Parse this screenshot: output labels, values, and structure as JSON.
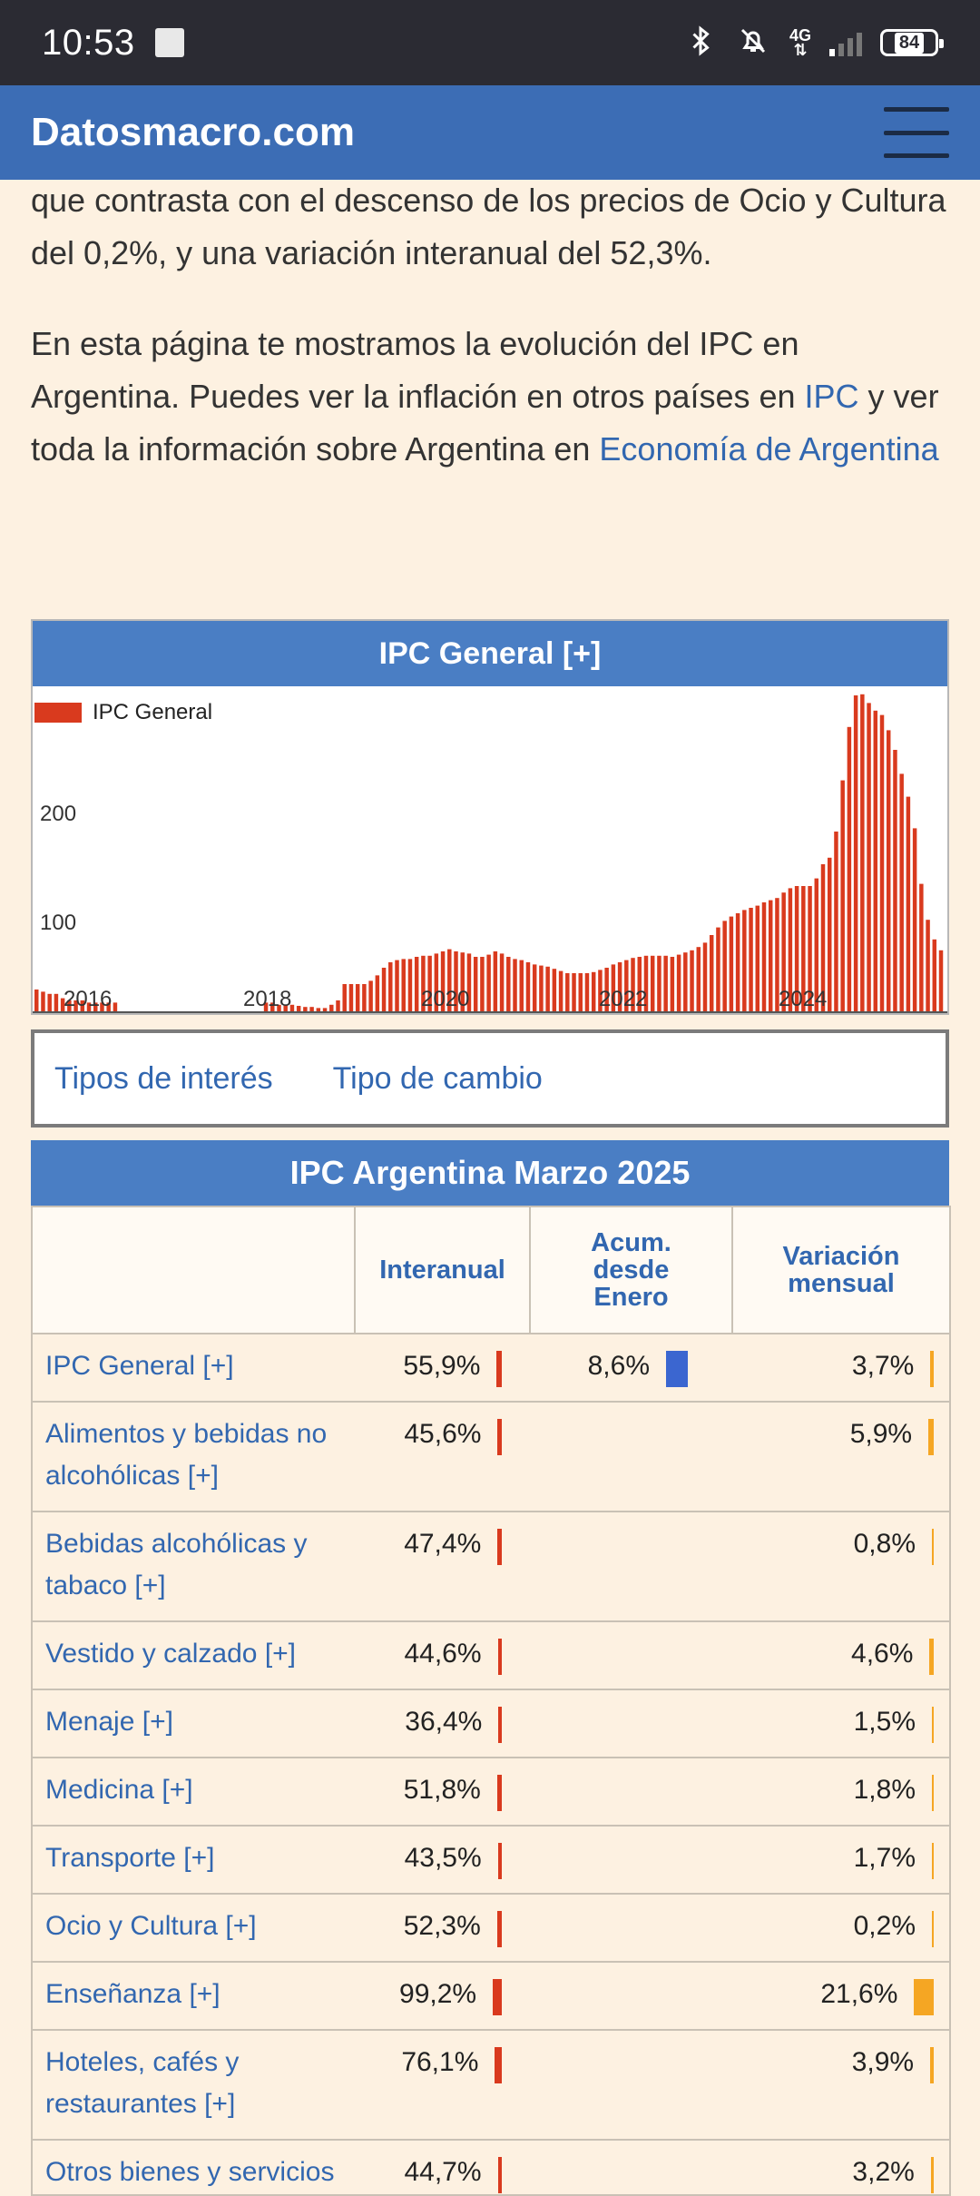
{
  "status_bar": {
    "time": "10:53",
    "network": "4G",
    "battery": "84",
    "icons": [
      "bluetooth-icon",
      "mute-icon",
      "signal-icon",
      "battery-icon"
    ]
  },
  "header": {
    "brand": "Datosmacro.com",
    "menu_icon": "hamburger-menu-icon"
  },
  "intro": {
    "paragraph1": "que contrasta con el descenso de los precios de Ocio y Cultura del 0,2%, y una variación interanual del 52,3%.",
    "paragraph2_start": "En esta página te mostramos la evolución del IPC en Argentina. Puedes ver la inflación en otros países en ",
    "link_ipc": "IPC",
    "paragraph2_mid": " y ver toda la información sobre Argentina en ",
    "link_economia": "Economía de Argentina"
  },
  "chart": {
    "title": "IPC General [+]",
    "legend": "IPC General",
    "color": "#d93a1e",
    "y_ticks": [
      "200",
      "100"
    ],
    "x_ticks": [
      "2016",
      "2018",
      "2020",
      "2022",
      "2024"
    ]
  },
  "chart_data": {
    "type": "bar",
    "series": [
      {
        "name": "IPC General"
      }
    ],
    "yticks": [
      100,
      200
    ],
    "xticks": [
      "2016",
      "2018",
      "2020",
      "2022",
      "2024"
    ],
    "values": [
      20,
      18,
      16,
      16,
      12,
      10,
      10,
      10,
      8,
      8,
      8,
      8,
      8,
      null,
      null,
      null,
      null,
      null,
      null,
      null,
      null,
      null,
      null,
      null,
      null,
      null,
      null,
      null,
      null,
      null,
      null,
      null,
      null,
      null,
      null,
      8,
      8,
      6,
      6,
      6,
      5,
      4,
      4,
      3,
      3,
      6,
      10,
      25,
      25,
      25,
      25,
      28,
      33,
      40,
      45,
      47,
      48,
      48,
      50,
      51,
      51,
      53,
      55,
      57,
      55,
      54,
      53,
      50,
      50,
      52,
      55,
      53,
      50,
      48,
      47,
      45,
      43,
      42,
      41,
      39,
      37,
      35,
      35,
      35,
      35,
      36,
      38,
      40,
      43,
      45,
      47,
      49,
      50,
      51,
      51,
      51,
      51,
      50,
      52,
      54,
      56,
      59,
      63,
      70,
      77,
      83,
      87,
      90,
      93,
      95,
      97,
      100,
      102,
      104,
      109,
      113,
      115,
      115,
      115,
      122,
      135,
      141,
      165,
      212,
      261,
      290,
      291,
      283,
      276,
      272,
      258,
      240,
      218,
      197,
      168,
      117,
      84,
      66,
      56
    ],
    "ylabel": "",
    "xlabel": ""
  },
  "links_box": {
    "tipos_interes": "Tipos de interés",
    "tipo_cambio": "Tipo de cambio"
  },
  "table": {
    "title": "IPC Argentina Marzo 2025",
    "headers": [
      "Interanual",
      "Acum. desde Enero",
      "Variación mensual"
    ],
    "rows": [
      {
        "name": "IPC General [+]",
        "interanual": "55,9%",
        "acum": "8,6%",
        "mensual": "3,7%"
      },
      {
        "name": "Alimentos y bebidas no alcohólicas [+]",
        "interanual": "45,6%",
        "acum": "",
        "mensual": "5,9%"
      },
      {
        "name": "Bebidas alcohólicas y tabaco [+]",
        "interanual": "47,4%",
        "acum": "",
        "mensual": "0,8%"
      },
      {
        "name": "Vestido y calzado [+]",
        "interanual": "44,6%",
        "acum": "",
        "mensual": "4,6%"
      },
      {
        "name": "Menaje [+]",
        "interanual": "36,4%",
        "acum": "",
        "mensual": "1,5%"
      },
      {
        "name": "Medicina [+]",
        "interanual": "51,8%",
        "acum": "",
        "mensual": "1,8%"
      },
      {
        "name": "Transporte [+]",
        "interanual": "43,5%",
        "acum": "",
        "mensual": "1,7%"
      },
      {
        "name": "Ocio y Cultura [+]",
        "interanual": "52,3%",
        "acum": "",
        "mensual": "0,2%"
      },
      {
        "name": "Enseñanza [+]",
        "interanual": "99,2%",
        "acum": "",
        "mensual": "21,6%"
      },
      {
        "name": "Hoteles, cafés y restaurantes [+]",
        "interanual": "76,1%",
        "acum": "",
        "mensual": "3,9%"
      },
      {
        "name": "Otros bienes y servicios",
        "interanual": "44,7%",
        "acum": "",
        "mensual": "3,2%"
      }
    ],
    "bar_colors": {
      "interanual": "#d93a1e",
      "acum": "#3b66d0",
      "mensual": "#f5a623"
    }
  }
}
